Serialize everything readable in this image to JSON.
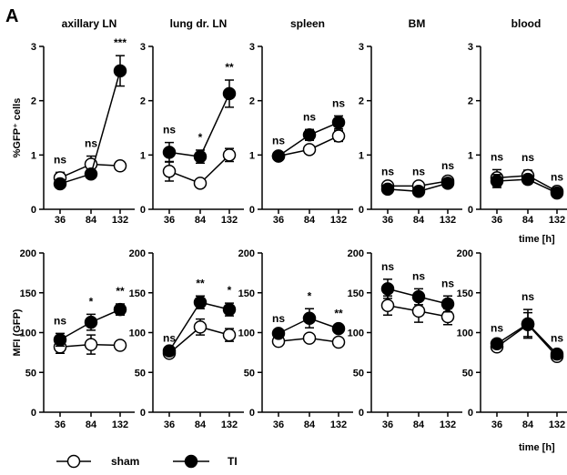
{
  "panel_letter": "A",
  "time_label": "time [h]",
  "legend": {
    "sham": "sham",
    "ti": "TI"
  },
  "chart_data": [
    {
      "type": "line",
      "title": "axillary LN",
      "ylabel": "%GFP⁺ cells",
      "ylim": [
        0,
        3
      ],
      "yticks": [
        "0",
        "1",
        "2",
        "3"
      ],
      "categories": [
        "36",
        "84",
        "132"
      ],
      "series": [
        {
          "name": "sham",
          "values": [
            0.58,
            0.83,
            0.8
          ],
          "errors": [
            0.1,
            0.15,
            0.0
          ]
        },
        {
          "name": "TI",
          "values": [
            0.47,
            0.65,
            2.55
          ],
          "errors": [
            0.05,
            0.05,
            0.28
          ]
        }
      ],
      "significance": [
        "ns",
        "ns",
        "***"
      ]
    },
    {
      "type": "line",
      "title": "lung dr. LN",
      "ylim": [
        0,
        3
      ],
      "yticks": [
        "0",
        "1",
        "2",
        "3"
      ],
      "categories": [
        "36",
        "84",
        "132"
      ],
      "series": [
        {
          "name": "sham",
          "values": [
            0.7,
            0.48,
            1.0
          ],
          "errors": [
            0.18,
            0.0,
            0.12
          ]
        },
        {
          "name": "TI",
          "values": [
            1.05,
            0.97,
            2.13
          ],
          "errors": [
            0.18,
            0.12,
            0.25
          ]
        }
      ],
      "significance": [
        "ns",
        "*",
        "**"
      ]
    },
    {
      "type": "line",
      "title": "spleen",
      "ylim": [
        0,
        3
      ],
      "yticks": [
        "0",
        "1",
        "2",
        "3"
      ],
      "categories": [
        "36",
        "84",
        "132"
      ],
      "series": [
        {
          "name": "sham",
          "values": [
            0.98,
            1.1,
            1.35
          ],
          "errors": [
            0.05,
            0.05,
            0.1
          ]
        },
        {
          "name": "TI",
          "values": [
            0.98,
            1.37,
            1.6
          ],
          "errors": [
            0.05,
            0.1,
            0.12
          ]
        }
      ],
      "significance": [
        "ns",
        "ns",
        "ns"
      ]
    },
    {
      "type": "line",
      "title": "BM",
      "ylim": [
        0,
        3
      ],
      "yticks": [
        "0",
        "1",
        "2",
        "3"
      ],
      "categories": [
        "36",
        "84",
        "132"
      ],
      "series": [
        {
          "name": "sham",
          "values": [
            0.43,
            0.43,
            0.52
          ],
          "errors": [
            0.03,
            0.03,
            0.05
          ]
        },
        {
          "name": "TI",
          "values": [
            0.37,
            0.33,
            0.48
          ],
          "errors": [
            0.03,
            0.03,
            0.05
          ]
        }
      ],
      "significance": [
        "ns",
        "ns",
        "ns"
      ]
    },
    {
      "type": "line",
      "title": "blood",
      "ylim": [
        0,
        3
      ],
      "yticks": [
        "0",
        "1",
        "2",
        "3"
      ],
      "categories": [
        "36",
        "84",
        "132"
      ],
      "series": [
        {
          "name": "sham",
          "values": [
            0.58,
            0.62,
            0.33
          ],
          "errors": [
            0.15,
            0.1,
            0.03
          ]
        },
        {
          "name": "TI",
          "values": [
            0.52,
            0.55,
            0.3
          ],
          "errors": [
            0.12,
            0.08,
            0.03
          ]
        }
      ],
      "significance": [
        "ns",
        "ns",
        "ns"
      ]
    },
    {
      "type": "line",
      "ylabel": "MFI (GFP)",
      "ylim": [
        0,
        200
      ],
      "yticks": [
        "0",
        "50",
        "100",
        "150",
        "200"
      ],
      "categories": [
        "36",
        "84",
        "132"
      ],
      "series": [
        {
          "name": "sham",
          "values": [
            82,
            85,
            84
          ],
          "errors": [
            8,
            12,
            0
          ]
        },
        {
          "name": "TI",
          "values": [
            91,
            113,
            129
          ],
          "errors": [
            8,
            10,
            7
          ]
        }
      ],
      "significance": [
        "ns",
        "*",
        "**"
      ]
    },
    {
      "type": "line",
      "ylim": [
        0,
        200
      ],
      "yticks": [
        "0",
        "50",
        "100",
        "150",
        "200"
      ],
      "categories": [
        "36",
        "84",
        "132"
      ],
      "series": [
        {
          "name": "sham",
          "values": [
            74,
            107,
            97
          ],
          "errors": [
            0,
            10,
            8
          ]
        },
        {
          "name": "TI",
          "values": [
            77,
            138,
            129
          ],
          "errors": [
            0,
            8,
            8
          ]
        }
      ],
      "significance": [
        "ns",
        "**",
        "*"
      ]
    },
    {
      "type": "line",
      "ylim": [
        0,
        200
      ],
      "yticks": [
        "0",
        "50",
        "100",
        "150",
        "200"
      ],
      "categories": [
        "36",
        "84",
        "132"
      ],
      "series": [
        {
          "name": "sham",
          "values": [
            89,
            93,
            88
          ],
          "errors": [
            3,
            3,
            3
          ]
        },
        {
          "name": "TI",
          "values": [
            99,
            118,
            105
          ],
          "errors": [
            3,
            12,
            3
          ]
        }
      ],
      "significance": [
        "ns",
        "*",
        "**"
      ]
    },
    {
      "type": "line",
      "ylim": [
        0,
        200
      ],
      "yticks": [
        "0",
        "50",
        "100",
        "150",
        "200"
      ],
      "categories": [
        "36",
        "84",
        "132"
      ],
      "series": [
        {
          "name": "sham",
          "values": [
            134,
            127,
            120
          ],
          "errors": [
            12,
            14,
            10
          ]
        },
        {
          "name": "TI",
          "values": [
            155,
            145,
            136
          ],
          "errors": [
            12,
            10,
            10
          ]
        }
      ],
      "significance": [
        "ns",
        "ns",
        "ns"
      ]
    },
    {
      "type": "line",
      "ylim": [
        0,
        200
      ],
      "yticks": [
        "0",
        "50",
        "100",
        "150",
        "200"
      ],
      "categories": [
        "36",
        "84",
        "132"
      ],
      "series": [
        {
          "name": "sham",
          "values": [
            82,
            110,
            70
          ],
          "errors": [
            5,
            15,
            4
          ]
        },
        {
          "name": "TI",
          "values": [
            86,
            111,
            73
          ],
          "errors": [
            4,
            18,
            4
          ]
        }
      ],
      "significance": [
        "ns",
        "ns",
        "ns"
      ]
    }
  ]
}
